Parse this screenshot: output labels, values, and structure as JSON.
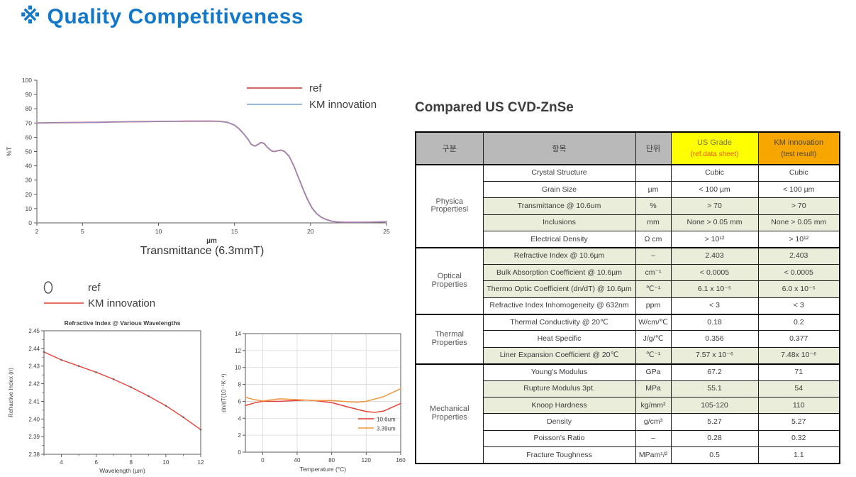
{
  "page": {
    "title": "※ Quality Competitiveness",
    "title_color": "#1478c8"
  },
  "table": {
    "heading": "Compared US CVD-ZnSe",
    "header_bg": "#b9b9b9",
    "shaded_bg": "#e9edd9",
    "columns": {
      "category": "구분",
      "item": "항목",
      "unit": "단위",
      "us": "US Grade",
      "km": "KM innovation"
    },
    "us_sub": "(ref.data sheet)",
    "km_sub": "(test result)",
    "us_bg": "#ffff00",
    "km_bg": "#f7a600",
    "us_sub_color": "#e8590c",
    "us_title_color": "#77774d",
    "km_text_color": "#4d4636",
    "sections": [
      {
        "category": "Physica\nPropertiesl",
        "rows": [
          {
            "item": "Crystal Structure",
            "unit": "",
            "us": "Cubic",
            "km": "Cubic",
            "shaded": false
          },
          {
            "item": "Grain Size",
            "unit": "µm",
            "us": "< 100 µm",
            "km": "< 100 µm",
            "shaded": false
          },
          {
            "item": "Transmittance @ 10.6um",
            "unit": "%",
            "us": "> 70",
            "km": "> 70",
            "shaded": true
          },
          {
            "item": "Inclusions",
            "unit": "mm",
            "us": "None > 0.05 mm",
            "km": "None > 0.05 mm",
            "shaded": true
          },
          {
            "item": "Electrical Density",
            "unit": "Ω cm",
            "us": "> 10¹²",
            "km": "> 10¹²",
            "shaded": false
          }
        ]
      },
      {
        "category": "Optical\nProperties",
        "rows": [
          {
            "item": "Refractive Index @ 10.6µm",
            "unit": "–",
            "us": "2.403",
            "km": "2.403",
            "shaded": true
          },
          {
            "item": "Bulk Absorption Coefficient @ 10.6µm",
            "unit": "cm⁻¹",
            "us": "< 0.0005",
            "km": "< 0.0005",
            "shaded": true
          },
          {
            "item": "Thermo Optic Coefficient (dn/dT) @ 10.6µm",
            "unit": "℃⁻¹",
            "us": "6.1 x 10⁻⁵",
            "km": "6.0 x 10⁻⁵",
            "shaded": true
          },
          {
            "item": "Refractive Index Inhomogeneity @ 632nm",
            "unit": "ppm",
            "us": "< 3",
            "km": "< 3",
            "shaded": false
          }
        ]
      },
      {
        "category": "Thermal\nProperties",
        "rows": [
          {
            "item": "Thermal Conductivity @ 20℃",
            "unit": "W/cm/℃",
            "us": "0.18",
            "km": "0.2",
            "shaded": false
          },
          {
            "item": "Heat Specific",
            "unit": "J/g/℃",
            "us": "0.356",
            "km": "0.377",
            "shaded": false
          },
          {
            "item": "Liner Expansion Coefficient @ 20℃",
            "unit": "℃⁻¹",
            "us": "7.57 x 10⁻⁶",
            "km": "7.48x 10⁻⁶",
            "shaded": true
          }
        ]
      },
      {
        "category": "Mechanical\nProperties",
        "rows": [
          {
            "item": "Young's Modulus",
            "unit": "GPa",
            "us": "67.2",
            "km": "71",
            "shaded": false
          },
          {
            "item": "Rupture Modulus 3pt.",
            "unit": "MPa",
            "us": "55.1",
            "km": "54",
            "shaded": true
          },
          {
            "item": "Knoop Hardness",
            "unit": "kg/mm²",
            "us": "105-120",
            "km": "110",
            "shaded": true
          },
          {
            "item": "Density",
            "unit": "g/cm³",
            "us": "5.27",
            "km": "5.27",
            "shaded": false
          },
          {
            "item": "Poisson's Ratio",
            "unit": "–",
            "us": "0.28",
            "km": "0.32",
            "shaded": false
          },
          {
            "item": "Fracture Toughness",
            "unit": "MPam¹/²",
            "us": "0.5",
            "km": "1.1",
            "shaded": false
          }
        ]
      }
    ]
  },
  "chart_data": [
    {
      "type": "line",
      "caption": "Transmittance (6.3mmT)",
      "xlabel": "µm",
      "ylabel": "%T",
      "xlim": [
        2,
        25
      ],
      "ylim": [
        0,
        100
      ],
      "xticks": [
        2,
        5,
        10,
        15,
        20,
        25
      ],
      "yticks": [
        0,
        10,
        20,
        30,
        40,
        50,
        60,
        70,
        80,
        90,
        100
      ],
      "grid": false,
      "legend_position": "top-right-inside",
      "legend": [
        {
          "name": "ref",
          "color": "#c0392b"
        },
        {
          "name": "KM innovation",
          "color": "#7aa4c8"
        }
      ],
      "series": [
        {
          "name": "ref",
          "color": "#c0504d",
          "width": 1.8,
          "x": [
            2,
            3,
            4,
            5,
            6,
            7,
            8,
            9,
            10,
            11,
            12,
            13,
            13.5,
            14,
            14.5,
            15,
            15.3,
            15.6,
            15.9,
            16.1,
            16.35,
            16.55,
            16.75,
            16.95,
            17.2,
            17.45,
            17.65,
            17.85,
            18.05,
            18.3,
            18.6,
            18.9,
            19.2,
            19.5,
            19.8,
            20.1,
            20.4,
            20.7,
            21,
            21.4,
            21.8,
            22.3,
            23,
            24,
            25
          ],
          "y": [
            70,
            70.2,
            70.3,
            70.4,
            70.5,
            70.7,
            70.9,
            71,
            71.1,
            71.2,
            71.3,
            71.3,
            71.3,
            71.2,
            70.6,
            68.5,
            66,
            62.5,
            58.5,
            55,
            53.8,
            55,
            56.4,
            55.6,
            52.5,
            50.4,
            50,
            50.6,
            51,
            50,
            46.5,
            40,
            32,
            24,
            16.5,
            10.5,
            6.5,
            4,
            2.5,
            1.2,
            0.6,
            0.4,
            0.4,
            0.5,
            0.8
          ]
        },
        {
          "name": "KM innovation",
          "color": "#8b93d6",
          "width": 1.1,
          "x": [
            2,
            3,
            4,
            5,
            6,
            7,
            8,
            9,
            10,
            11,
            12,
            13,
            13.5,
            14,
            14.5,
            15,
            15.3,
            15.6,
            15.9,
            16.1,
            16.35,
            16.55,
            16.75,
            16.95,
            17.2,
            17.45,
            17.65,
            17.85,
            18.05,
            18.3,
            18.6,
            18.9,
            19.2,
            19.5,
            19.8,
            20.1,
            20.4,
            20.7,
            21,
            21.4,
            21.8,
            22.3,
            23,
            24,
            25
          ],
          "y": [
            70,
            70.2,
            70.3,
            70.4,
            70.5,
            70.7,
            70.9,
            71,
            71.1,
            71.2,
            71.3,
            71.3,
            71.3,
            71.2,
            70.6,
            68.5,
            66,
            62.5,
            58.5,
            55,
            53.8,
            55,
            56.4,
            55.6,
            52.5,
            50.4,
            50,
            50.6,
            51,
            50,
            46.5,
            40,
            32,
            24,
            16.5,
            10.5,
            6.5,
            4,
            2.5,
            1.2,
            0.6,
            0.4,
            0.4,
            0.5,
            0.8
          ]
        }
      ]
    },
    {
      "type": "line",
      "title": "Refractive Index @ Various Wavelengths",
      "xlabel": "Wavelength (µm)",
      "ylabel": "Refractive Index (n)",
      "xlim": [
        3,
        12
      ],
      "ylim": [
        2.38,
        2.45
      ],
      "xticks": [
        4,
        6,
        8,
        10,
        12
      ],
      "xminor": [
        3,
        5,
        7,
        9,
        11
      ],
      "yticks": [
        2.38,
        2.39,
        2.4,
        2.41,
        2.42,
        2.43,
        2.44,
        2.45
      ],
      "ytick_labels": [
        "2.38",
        "2.39",
        "2.40",
        "2.41",
        "2.42",
        "2.43",
        "2.44",
        "2.45"
      ],
      "grid": false,
      "outside_legend": [
        {
          "name": "ref",
          "symbol": "circle",
          "color": "#555555"
        },
        {
          "name": "KM innovation",
          "symbol": "line",
          "color": "#e0413a"
        }
      ],
      "series": [
        {
          "name": "KM innovation",
          "color": "#e8413a",
          "width": 1.4,
          "markers": true,
          "x": [
            3,
            4,
            5,
            6,
            7,
            8,
            9,
            10,
            11,
            12
          ],
          "y": [
            2.438,
            2.4335,
            2.43,
            2.4265,
            2.4225,
            2.418,
            2.413,
            2.4075,
            2.401,
            2.394
          ]
        }
      ]
    },
    {
      "type": "line",
      "xlabel": "Temperature (°C)",
      "ylabel": "dn/dT(10⁻⁵K⁻¹)",
      "xlim": [
        -20,
        160
      ],
      "ylim": [
        0,
        14
      ],
      "xticks": [
        0,
        40,
        80,
        120,
        160
      ],
      "yticks": [
        0,
        2,
        4,
        6,
        8,
        10,
        12,
        14
      ],
      "grid": true,
      "legend_position": "bottom-right-inside",
      "legend": [
        {
          "name": "10.6um",
          "color": "#e8413a"
        },
        {
          "name": "3.39um",
          "color": "#f0953c"
        }
      ],
      "series": [
        {
          "name": "10.6um",
          "color": "#e8413a",
          "width": 1.5,
          "x": [
            -20,
            -10,
            0,
            20,
            40,
            50,
            60,
            80,
            100,
            120,
            130,
            140,
            160
          ],
          "y": [
            5.5,
            5.8,
            6.0,
            6.0,
            6.1,
            6.15,
            6.1,
            5.85,
            5.3,
            4.8,
            4.7,
            4.85,
            5.75
          ]
        },
        {
          "name": "3.39um",
          "color": "#f0953c",
          "width": 1.5,
          "x": [
            -20,
            -10,
            0,
            20,
            40,
            60,
            80,
            100,
            110,
            120,
            140,
            160
          ],
          "y": [
            6.5,
            6.2,
            6.05,
            6.3,
            6.2,
            6.1,
            6.1,
            5.95,
            5.9,
            6.0,
            6.55,
            7.5
          ]
        }
      ]
    }
  ]
}
